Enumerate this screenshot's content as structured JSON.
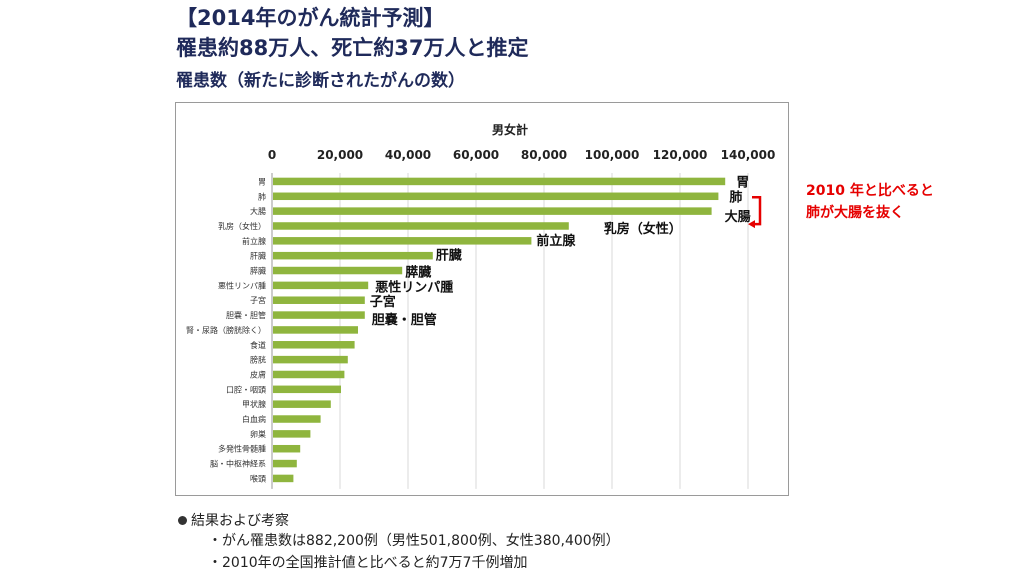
{
  "header": {
    "title_1": "【2014年のがん統計予測】",
    "title_2": "罹患約88万人、死亡約37万人と推定",
    "title_3": "罹患数（新たに診断されたがんの数）"
  },
  "annotation": {
    "line_1": "2010 年と比べると",
    "line_2": "肺が大腸を抜く",
    "color": "#e60000"
  },
  "results": {
    "heading": "結果および考察",
    "items": [
      "がん罹患数は882,200例（男性501,800例、女性380,400例）",
      "2010年の全国推計値と比べると約7万7千例増加"
    ],
    "item_mark": "・"
  },
  "chart_data": {
    "type": "bar",
    "orientation": "horizontal",
    "title": "男女計",
    "bar_color": "#8fb53e",
    "xlim": [
      0,
      140000
    ],
    "x_ticks": [
      "0",
      "20,000",
      "40,000",
      "60,000",
      "80,000",
      "100,000",
      "120,000",
      "140,000"
    ],
    "x_tick_values": [
      0,
      20000,
      40000,
      60000,
      80000,
      100000,
      120000,
      140000
    ],
    "grid": "vertical",
    "categories": [
      "胃",
      "肺",
      "大腸",
      "乳房（女性）",
      "前立腺",
      "肝臓",
      "膵臓",
      "悪性リンパ腫",
      "子宮",
      "胆嚢・胆管",
      "腎・尿路（膀胱除く）",
      "食道",
      "膀胱",
      "皮膚",
      "口腔・咽頭",
      "甲状腺",
      "白血病",
      "卵巣",
      "多発性骨髄腫",
      "脳・中枢神経系",
      "喉頭"
    ],
    "values": [
      133000,
      131000,
      129000,
      87000,
      76000,
      47000,
      38000,
      28000,
      27000,
      27000,
      25000,
      24000,
      22000,
      21000,
      20000,
      17000,
      14000,
      11000,
      8000,
      7000,
      6000
    ],
    "data_labels": [
      {
        "category": "胃",
        "text": "胃"
      },
      {
        "category": "肺",
        "text": "肺"
      },
      {
        "category": "大腸",
        "text": "大腸"
      },
      {
        "category": "乳房（女性）",
        "text": "乳房（女性）"
      },
      {
        "category": "前立腺",
        "text": "前立腺"
      },
      {
        "category": "肝臓",
        "text": "肝臓"
      },
      {
        "category": "膵臓",
        "text": "膵臓"
      },
      {
        "category": "悪性リンパ腫",
        "text": "悪性リンパ腫"
      },
      {
        "category": "子宮",
        "text": "子宮"
      },
      {
        "category": "胆嚢・胆管",
        "text": "胆嚢・胆管"
      }
    ]
  }
}
